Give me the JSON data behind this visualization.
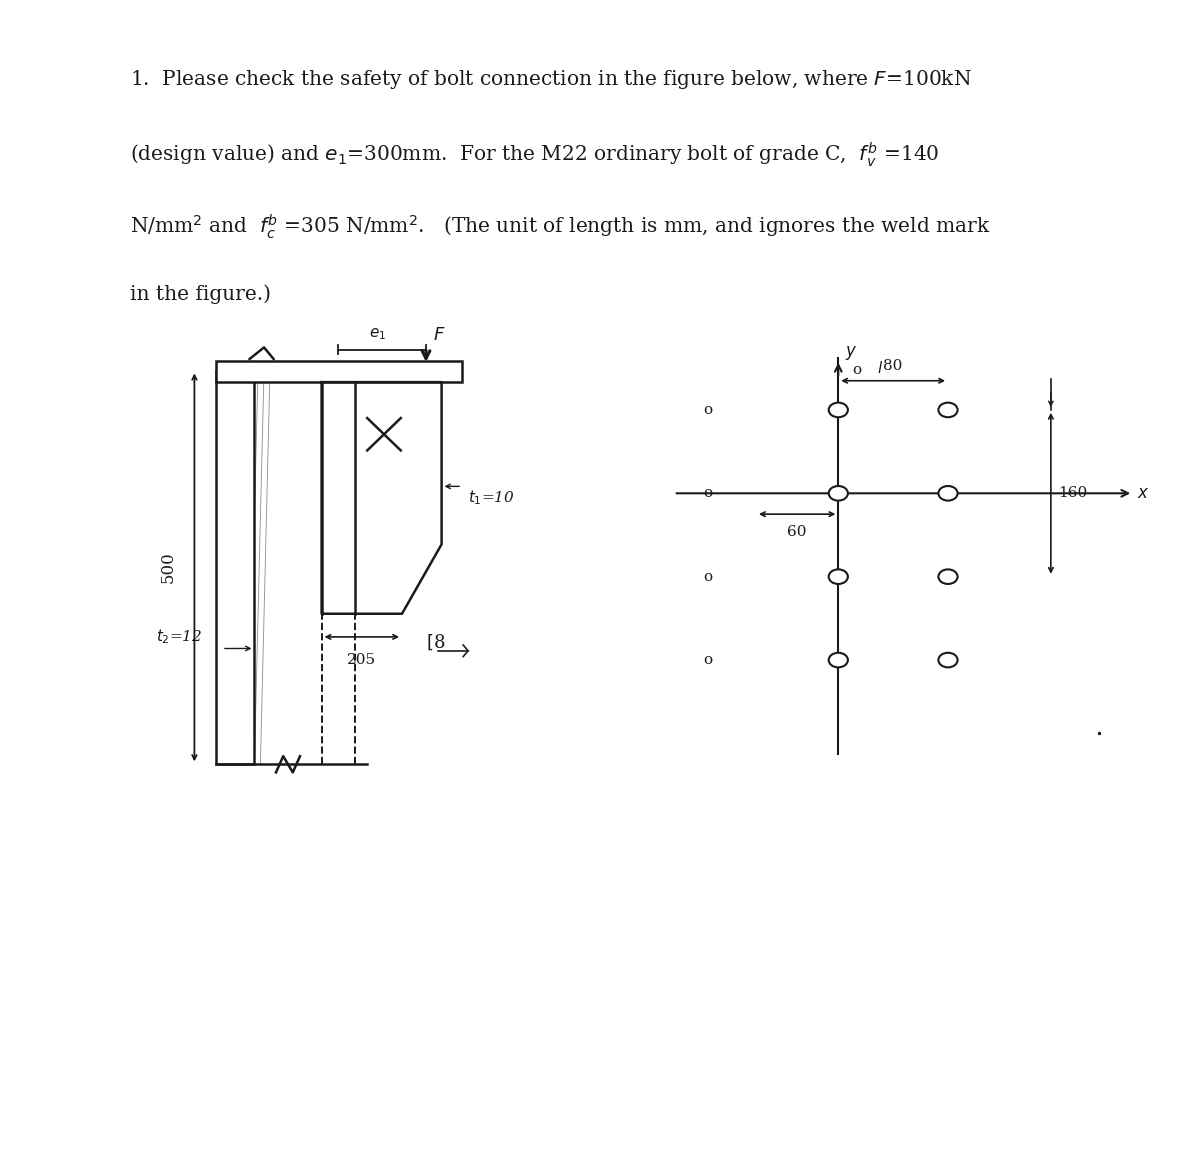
{
  "bg_color": "#ffffff",
  "line_color": "#1a1a1a",
  "text_lines": [
    "1.  Please check the safety of bolt connection in the figure below, where $F$=100kN",
    "(design value) and $e_1$=300mm.  For the M22 ordinary bolt of grade C,  $f_v^b$ =140",
    "N/mm$^2$ and  $f_c^b$ =305 N/mm$^2$.   (The unit of length is mm, and ignores the weld mark",
    "in the figure.)"
  ]
}
